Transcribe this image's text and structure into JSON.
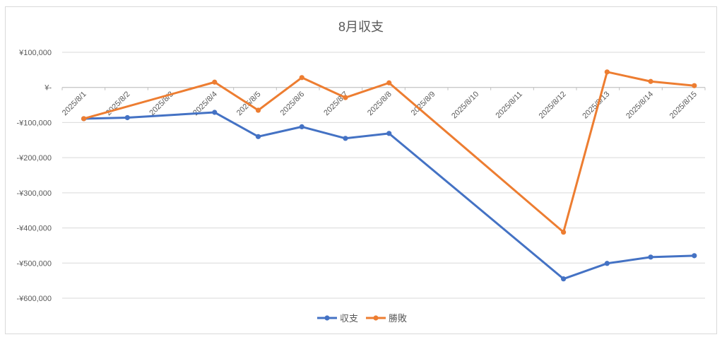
{
  "chart_data": {
    "type": "line",
    "title": "8月収支",
    "categories": [
      "2025/8/1",
      "2025/8/2",
      "2025/8/3",
      "2025/8/4",
      "2025/8/5",
      "2025/8/6",
      "2025/8/7",
      "2025/8/8",
      "2025/8/9",
      "2025/8/10",
      "2025/8/11",
      "2025/8/12",
      "2025/8/13",
      "2025/8/14",
      "2025/8/15"
    ],
    "y_ticks": [
      100000,
      0,
      -100000,
      -200000,
      -300000,
      -400000,
      -500000,
      -600000
    ],
    "y_tick_labels": [
      "¥100,000",
      "¥-",
      "-¥100,000",
      "-¥200,000",
      "-¥300,000",
      "-¥400,000",
      "-¥500,000",
      "-¥600,000"
    ],
    "ylim": [
      -600000,
      100000
    ],
    "grid": true,
    "legend_position": "bottom",
    "series": [
      {
        "name": "収支",
        "color": "#4472c4",
        "points": [
          {
            "x": "2025/8/1",
            "y": -89000
          },
          {
            "x": "2025/8/2",
            "y": -86000
          },
          {
            "x": "2025/8/4",
            "y": -71000
          },
          {
            "x": "2025/8/5",
            "y": -140000
          },
          {
            "x": "2025/8/6",
            "y": -112000
          },
          {
            "x": "2025/8/7",
            "y": -145000
          },
          {
            "x": "2025/8/8",
            "y": -131000
          },
          {
            "x": "2025/8/12",
            "y": -545000
          },
          {
            "x": "2025/8/13",
            "y": -501000
          },
          {
            "x": "2025/8/14",
            "y": -483000
          },
          {
            "x": "2025/8/15",
            "y": -479000
          }
        ]
      },
      {
        "name": "勝敗",
        "color": "#ed7d31",
        "points": [
          {
            "x": "2025/8/1",
            "y": -89000
          },
          {
            "x": "2025/8/4",
            "y": 15000
          },
          {
            "x": "2025/8/5",
            "y": -65000
          },
          {
            "x": "2025/8/6",
            "y": 28000
          },
          {
            "x": "2025/8/7",
            "y": -29000
          },
          {
            "x": "2025/8/8",
            "y": 13000
          },
          {
            "x": "2025/8/12",
            "y": -412000
          },
          {
            "x": "2025/8/13",
            "y": 44000
          },
          {
            "x": "2025/8/14",
            "y": 17000
          },
          {
            "x": "2025/8/15",
            "y": 5000
          }
        ]
      }
    ]
  }
}
